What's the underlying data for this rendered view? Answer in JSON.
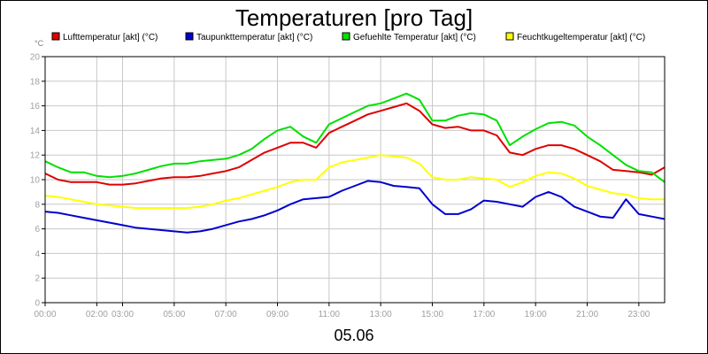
{
  "chart_data": {
    "type": "line",
    "title": "Temperaturen [pro Tag]",
    "xlabel": "05.06",
    "ylabel_unit": "°C",
    "ylim": [
      0,
      20
    ],
    "yticks": [
      0,
      2,
      4,
      6,
      8,
      10,
      12,
      14,
      16,
      18,
      20
    ],
    "xlim": [
      0,
      24
    ],
    "xticks": [
      {
        "h": 0,
        "label": "00:00"
      },
      {
        "h": 2,
        "label": "02:00"
      },
      {
        "h": 3,
        "label": "03:00"
      },
      {
        "h": 5,
        "label": "05:00"
      },
      {
        "h": 7,
        "label": "07:00"
      },
      {
        "h": 9,
        "label": "09:00"
      },
      {
        "h": 11,
        "label": "11:00"
      },
      {
        "h": 13,
        "label": "13:00"
      },
      {
        "h": 15,
        "label": "15:00"
      },
      {
        "h": 17,
        "label": "17:00"
      },
      {
        "h": 19,
        "label": "19:00"
      },
      {
        "h": 21,
        "label": "21:00"
      },
      {
        "h": 23,
        "label": "23:00"
      }
    ],
    "grid": true,
    "legend_position": "top",
    "series": [
      {
        "name": "Lufttemperatur [akt] (°C)",
        "color": "#e00000",
        "x": [
          0,
          0.5,
          1,
          1.5,
          2,
          2.5,
          3,
          3.5,
          4,
          4.5,
          5,
          5.5,
          6,
          6.5,
          7,
          7.5,
          8,
          8.5,
          9,
          9.5,
          10,
          10.5,
          11,
          11.5,
          12,
          12.5,
          13,
          13.5,
          14,
          14.5,
          15,
          15.5,
          16,
          16.5,
          17,
          17.5,
          18,
          18.5,
          19,
          19.5,
          20,
          20.5,
          21,
          21.5,
          22,
          22.5,
          23,
          23.5,
          24
        ],
        "y": [
          10.5,
          10.0,
          9.8,
          9.8,
          9.8,
          9.6,
          9.6,
          9.7,
          9.9,
          10.1,
          10.2,
          10.2,
          10.3,
          10.5,
          10.7,
          11.0,
          11.6,
          12.2,
          12.6,
          13.0,
          13.0,
          12.6,
          13.8,
          14.3,
          14.8,
          15.3,
          15.6,
          15.9,
          16.2,
          15.6,
          14.5,
          14.2,
          14.3,
          14.0,
          14.0,
          13.6,
          12.2,
          12.0,
          12.5,
          12.8,
          12.8,
          12.5,
          12.0,
          11.5,
          10.8,
          10.7,
          10.6,
          10.4,
          11.0
        ]
      },
      {
        "name": "Taupunkttemperatur [akt] (°C)",
        "color": "#0000d0",
        "x": [
          0,
          0.5,
          1,
          1.5,
          2,
          2.5,
          3,
          3.5,
          4,
          4.5,
          5,
          5.5,
          6,
          6.5,
          7,
          7.5,
          8,
          8.5,
          9,
          9.5,
          10,
          10.5,
          11,
          11.5,
          12,
          12.5,
          13,
          13.5,
          14,
          14.5,
          15,
          15.5,
          16,
          16.5,
          17,
          17.5,
          18,
          18.5,
          19,
          19.5,
          20,
          20.5,
          21,
          21.5,
          22,
          22.5,
          23,
          23.5,
          24
        ],
        "y": [
          7.4,
          7.3,
          7.1,
          6.9,
          6.7,
          6.5,
          6.3,
          6.1,
          6.0,
          5.9,
          5.8,
          5.7,
          5.8,
          6.0,
          6.3,
          6.6,
          6.8,
          7.1,
          7.5,
          8.0,
          8.4,
          8.5,
          8.6,
          9.1,
          9.5,
          9.9,
          9.8,
          9.5,
          9.4,
          9.3,
          8.0,
          7.2,
          7.2,
          7.6,
          8.3,
          8.2,
          8.0,
          7.8,
          8.6,
          9.0,
          8.6,
          7.8,
          7.4,
          7.0,
          6.9,
          8.4,
          7.2,
          7.0,
          6.8
        ]
      },
      {
        "name": "Gefuehlte Temperatur [akt] (°C)",
        "color": "#00e000",
        "x": [
          0,
          0.5,
          1,
          1.5,
          2,
          2.5,
          3,
          3.5,
          4,
          4.5,
          5,
          5.5,
          6,
          6.5,
          7,
          7.5,
          8,
          8.5,
          9,
          9.5,
          10,
          10.5,
          11,
          11.5,
          12,
          12.5,
          13,
          13.5,
          14,
          14.5,
          15,
          15.5,
          16,
          16.5,
          17,
          17.5,
          18,
          18.5,
          19,
          19.5,
          20,
          20.5,
          21,
          21.5,
          22,
          22.5,
          23,
          23.5,
          24
        ],
        "y": [
          11.5,
          11.0,
          10.6,
          10.6,
          10.3,
          10.2,
          10.3,
          10.5,
          10.8,
          11.1,
          11.3,
          11.3,
          11.5,
          11.6,
          11.7,
          12.0,
          12.5,
          13.3,
          14.0,
          14.3,
          13.5,
          13.0,
          14.5,
          15.0,
          15.5,
          16.0,
          16.2,
          16.6,
          17.0,
          16.5,
          14.8,
          14.8,
          15.2,
          15.4,
          15.3,
          14.8,
          12.8,
          13.5,
          14.1,
          14.6,
          14.7,
          14.4,
          13.5,
          12.8,
          12.0,
          11.2,
          10.7,
          10.6,
          9.8
        ]
      },
      {
        "name": "Feuchtkugeltemperatur [akt] (°C)",
        "color": "#ffff00",
        "x": [
          0,
          0.5,
          1,
          1.5,
          2,
          2.5,
          3,
          3.5,
          4,
          4.5,
          5,
          5.5,
          6,
          6.5,
          7,
          7.5,
          8,
          8.5,
          9,
          9.5,
          10,
          10.5,
          11,
          11.5,
          12,
          12.5,
          13,
          13.5,
          14,
          14.5,
          15,
          15.5,
          16,
          16.5,
          17,
          17.5,
          18,
          18.5,
          19,
          19.5,
          20,
          20.5,
          21,
          21.5,
          22,
          22.5,
          23,
          23.5,
          24
        ],
        "y": [
          8.7,
          8.6,
          8.4,
          8.2,
          8.0,
          7.9,
          7.8,
          7.7,
          7.7,
          7.7,
          7.7,
          7.7,
          7.8,
          8.0,
          8.3,
          8.5,
          8.8,
          9.1,
          9.4,
          9.8,
          10.0,
          10.0,
          11.0,
          11.4,
          11.6,
          11.8,
          12.0,
          11.9,
          11.8,
          11.3,
          10.2,
          10.0,
          10.0,
          10.2,
          10.1,
          10.0,
          9.4,
          9.8,
          10.3,
          10.6,
          10.5,
          10.1,
          9.5,
          9.2,
          8.9,
          8.8,
          8.5,
          8.4,
          8.4
        ]
      }
    ]
  }
}
